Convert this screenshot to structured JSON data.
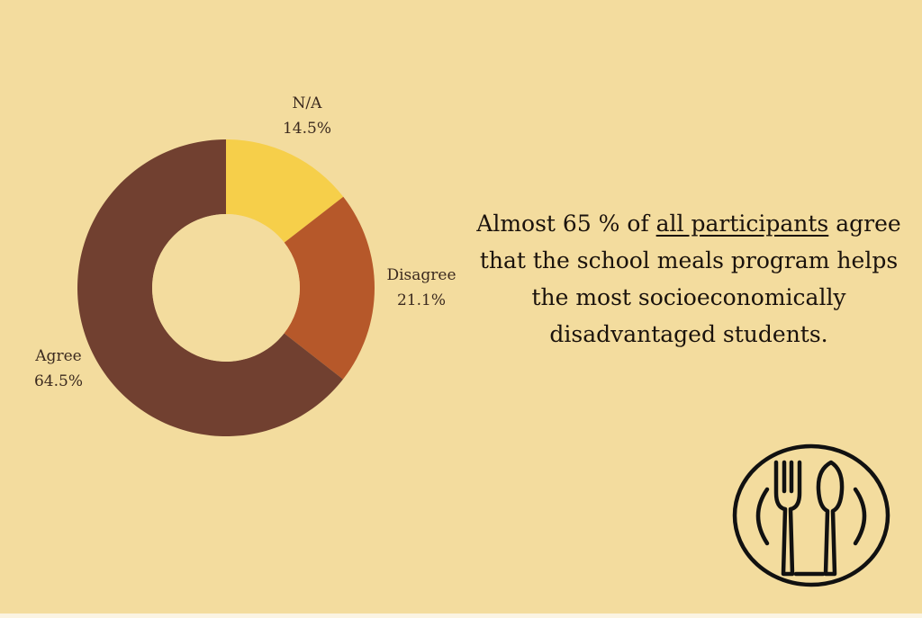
{
  "chart_data": {
    "type": "pie",
    "donut": true,
    "slices": [
      {
        "label": "N/A",
        "value": 14.5,
        "display": "14.5%",
        "color": "#f6cf4a"
      },
      {
        "label": "Disagree",
        "value": 21.1,
        "display": "21.1%",
        "color": "#b6582a"
      },
      {
        "label": "Agree",
        "value": 64.5,
        "display": "64.5%",
        "color": "#714030"
      }
    ]
  },
  "headline": {
    "pre": "Almost 65 % of ",
    "underlined": "all participants",
    "post": " agree that the school meals program helps the most socioeconomically disadvantaged students."
  },
  "icon": "plate-fork-spoon-icon",
  "colors": {
    "background": "#f3dc9e",
    "text": "#1a120c"
  }
}
